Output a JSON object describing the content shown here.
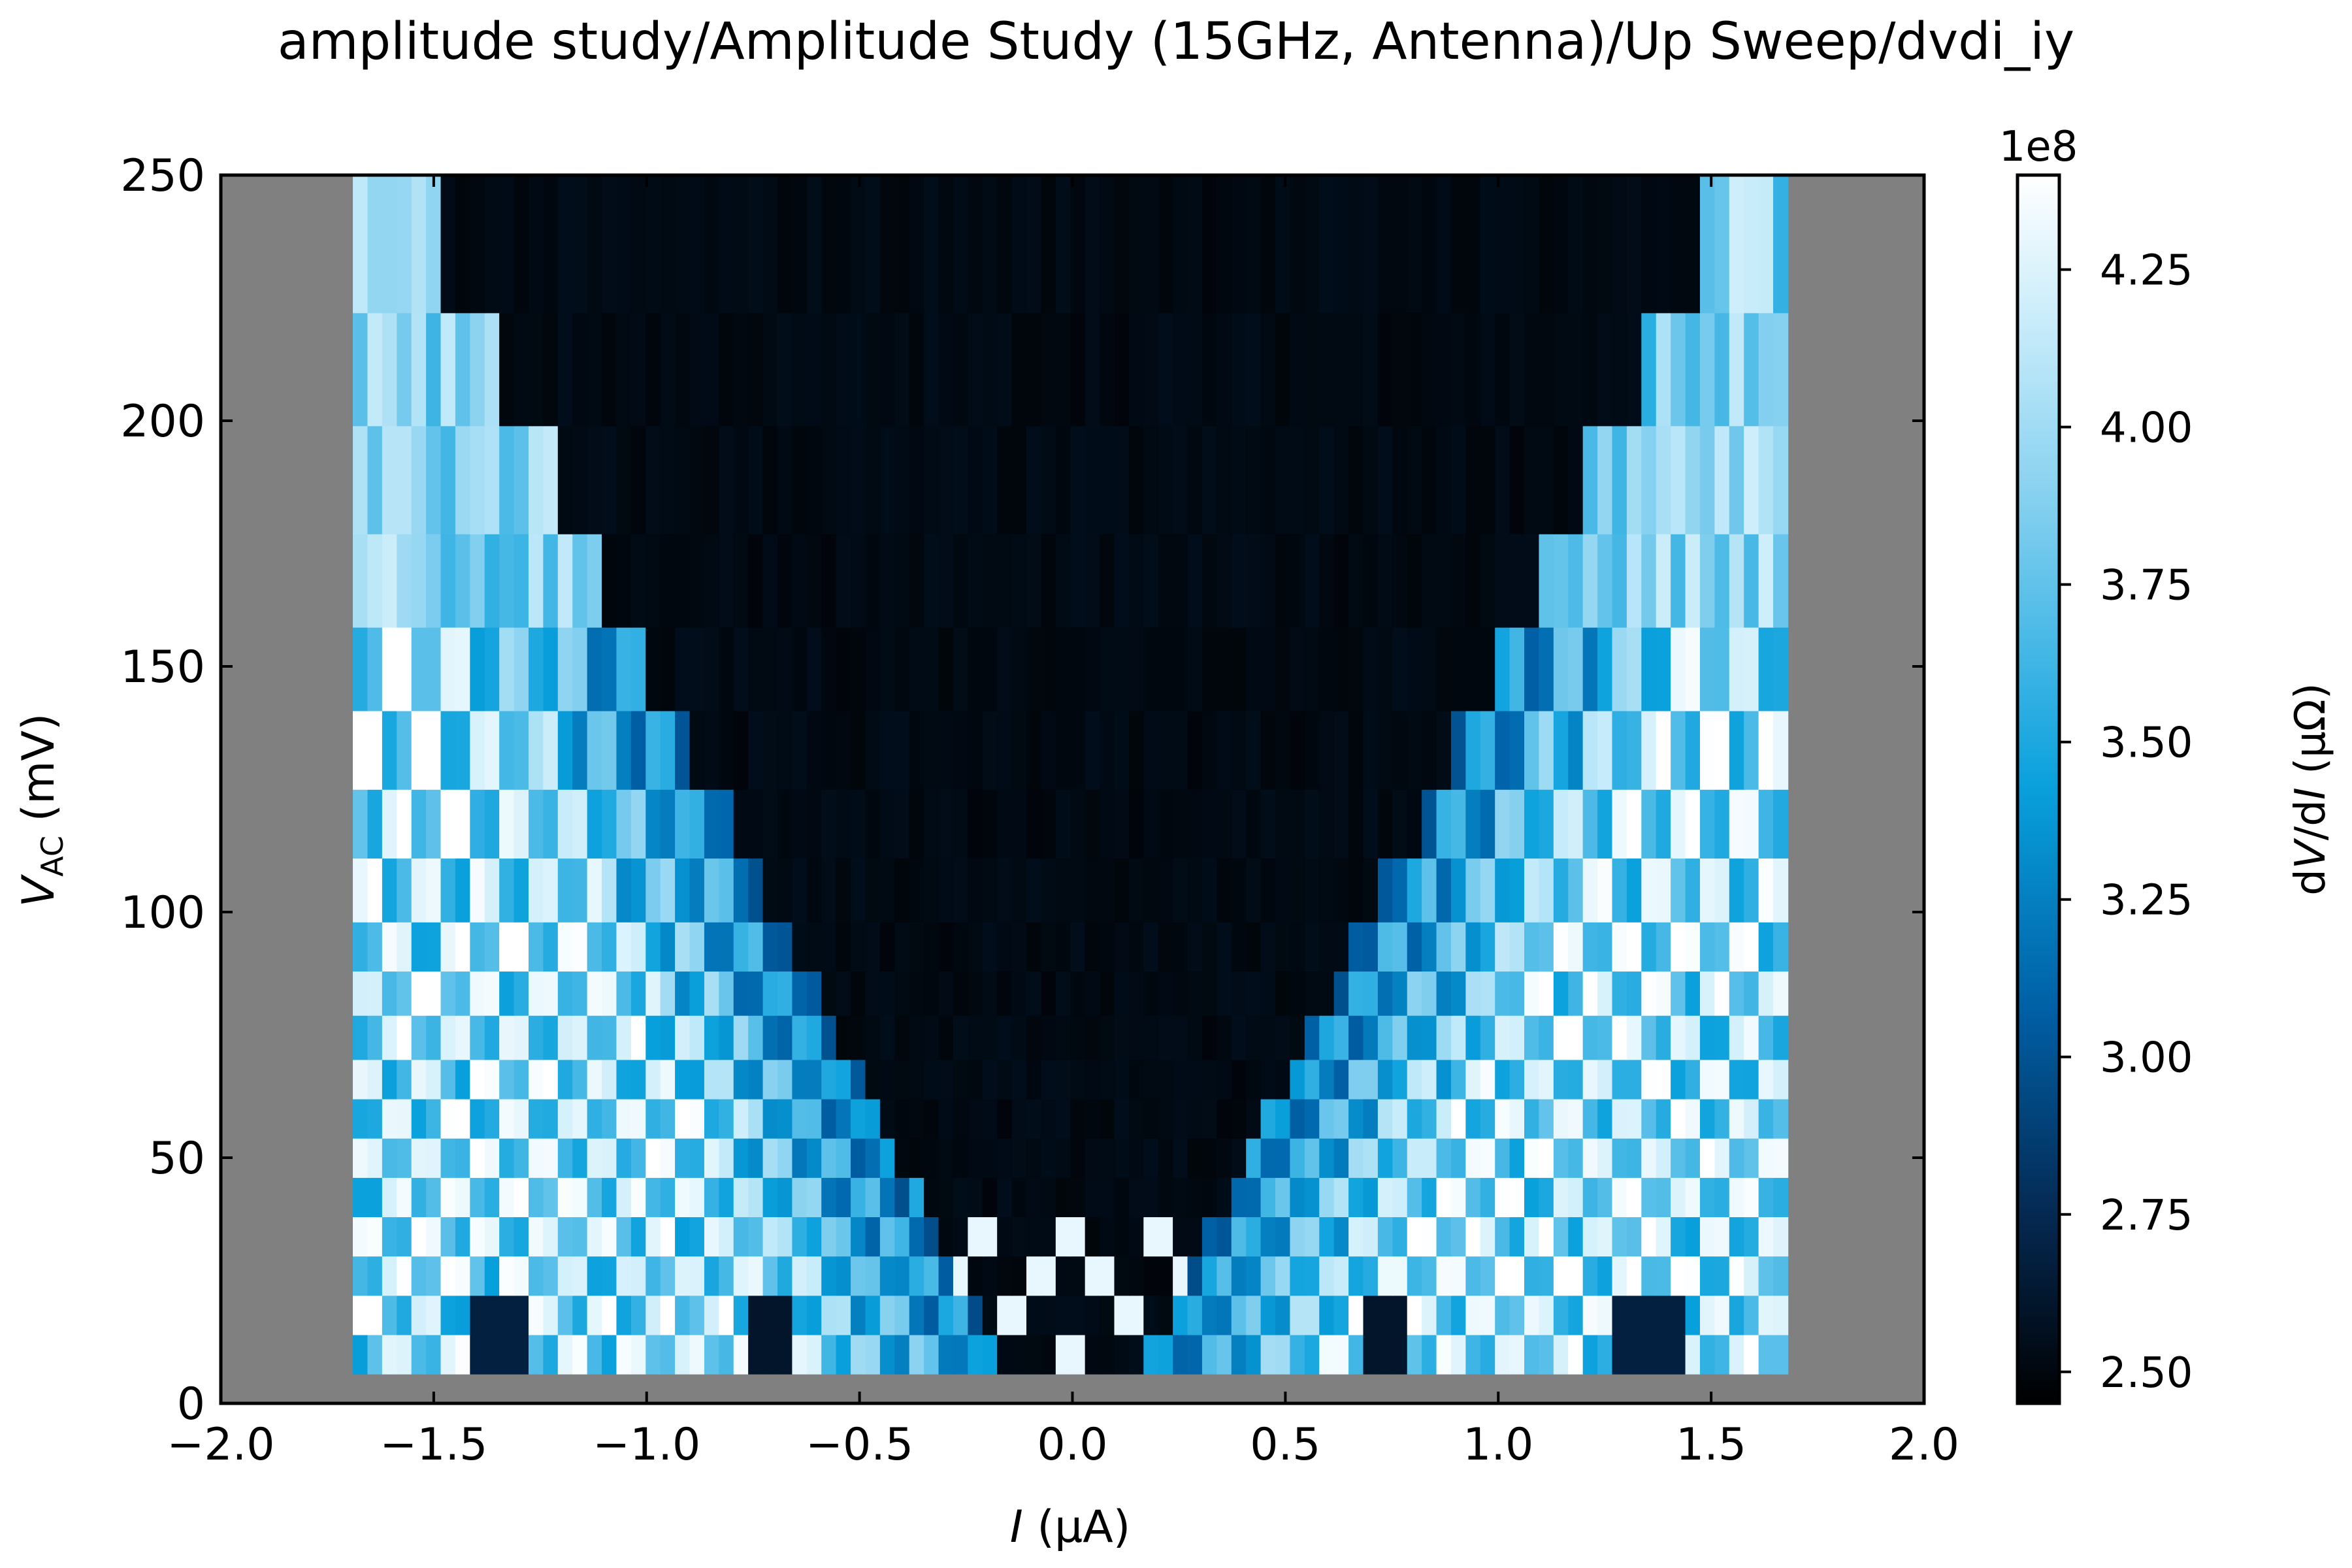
{
  "title": "amplitude study/Amplitude Study (15GHz, Antenna)/Up Sweep/dvdi_iy",
  "chart_data": {
    "type": "heatmap",
    "title": "amplitude study/Amplitude Study (15GHz, Antenna)/Up Sweep/dvdi_iy",
    "xlabel_italic": "I",
    "xlabel_rest": " (μA)",
    "ylabel_italic": "V",
    "ylabel_sub": "AC",
    "ylabel_rest": " (mV)",
    "xlim": [
      -2.0,
      2.0
    ],
    "ylim": [
      0,
      250
    ],
    "x_ticks": [
      -2.0,
      -1.5,
      -1.0,
      -0.5,
      0.0,
      0.5,
      1.0,
      1.5,
      2.0
    ],
    "x_tick_labels": [
      "−2.0",
      "−1.5",
      "−1.0",
      "−0.5",
      "0.0",
      "0.5",
      "1.0",
      "1.5",
      "2.0"
    ],
    "y_ticks": [
      0,
      50,
      100,
      150,
      200,
      250
    ],
    "y_tick_labels": [
      "0",
      "50",
      "100",
      "150",
      "200",
      "250"
    ],
    "data_extent": {
      "x": [
        -1.69,
        1.68
      ],
      "y": [
        6,
        250
      ]
    },
    "background_color": "#808080",
    "colormap": "Blues_r (black → blue → white)",
    "colorbar": {
      "label_plain": "d",
      "label_italic_1": "V",
      "label_mid": "/d",
      "label_italic_2": "I",
      "label_rest": " (μΩ)",
      "offset": "1e8",
      "range": [
        2.45,
        4.4
      ],
      "ticks": [
        2.5,
        2.75,
        3.0,
        3.25,
        3.5,
        3.75,
        4.0,
        4.25
      ],
      "tick_labels": [
        "2.50",
        "2.75",
        "3.00",
        "3.25",
        "3.50",
        "3.75",
        "4.00",
        "4.25"
      ]
    },
    "amplitude_bands_mV": [
      6,
      14,
      22,
      30,
      38,
      46,
      54,
      62,
      70,
      79,
      88,
      98,
      111,
      125,
      141,
      158,
      177,
      199,
      222,
      250
    ],
    "shapiro_step_spacing_uA": 0.0685,
    "grid": false
  }
}
